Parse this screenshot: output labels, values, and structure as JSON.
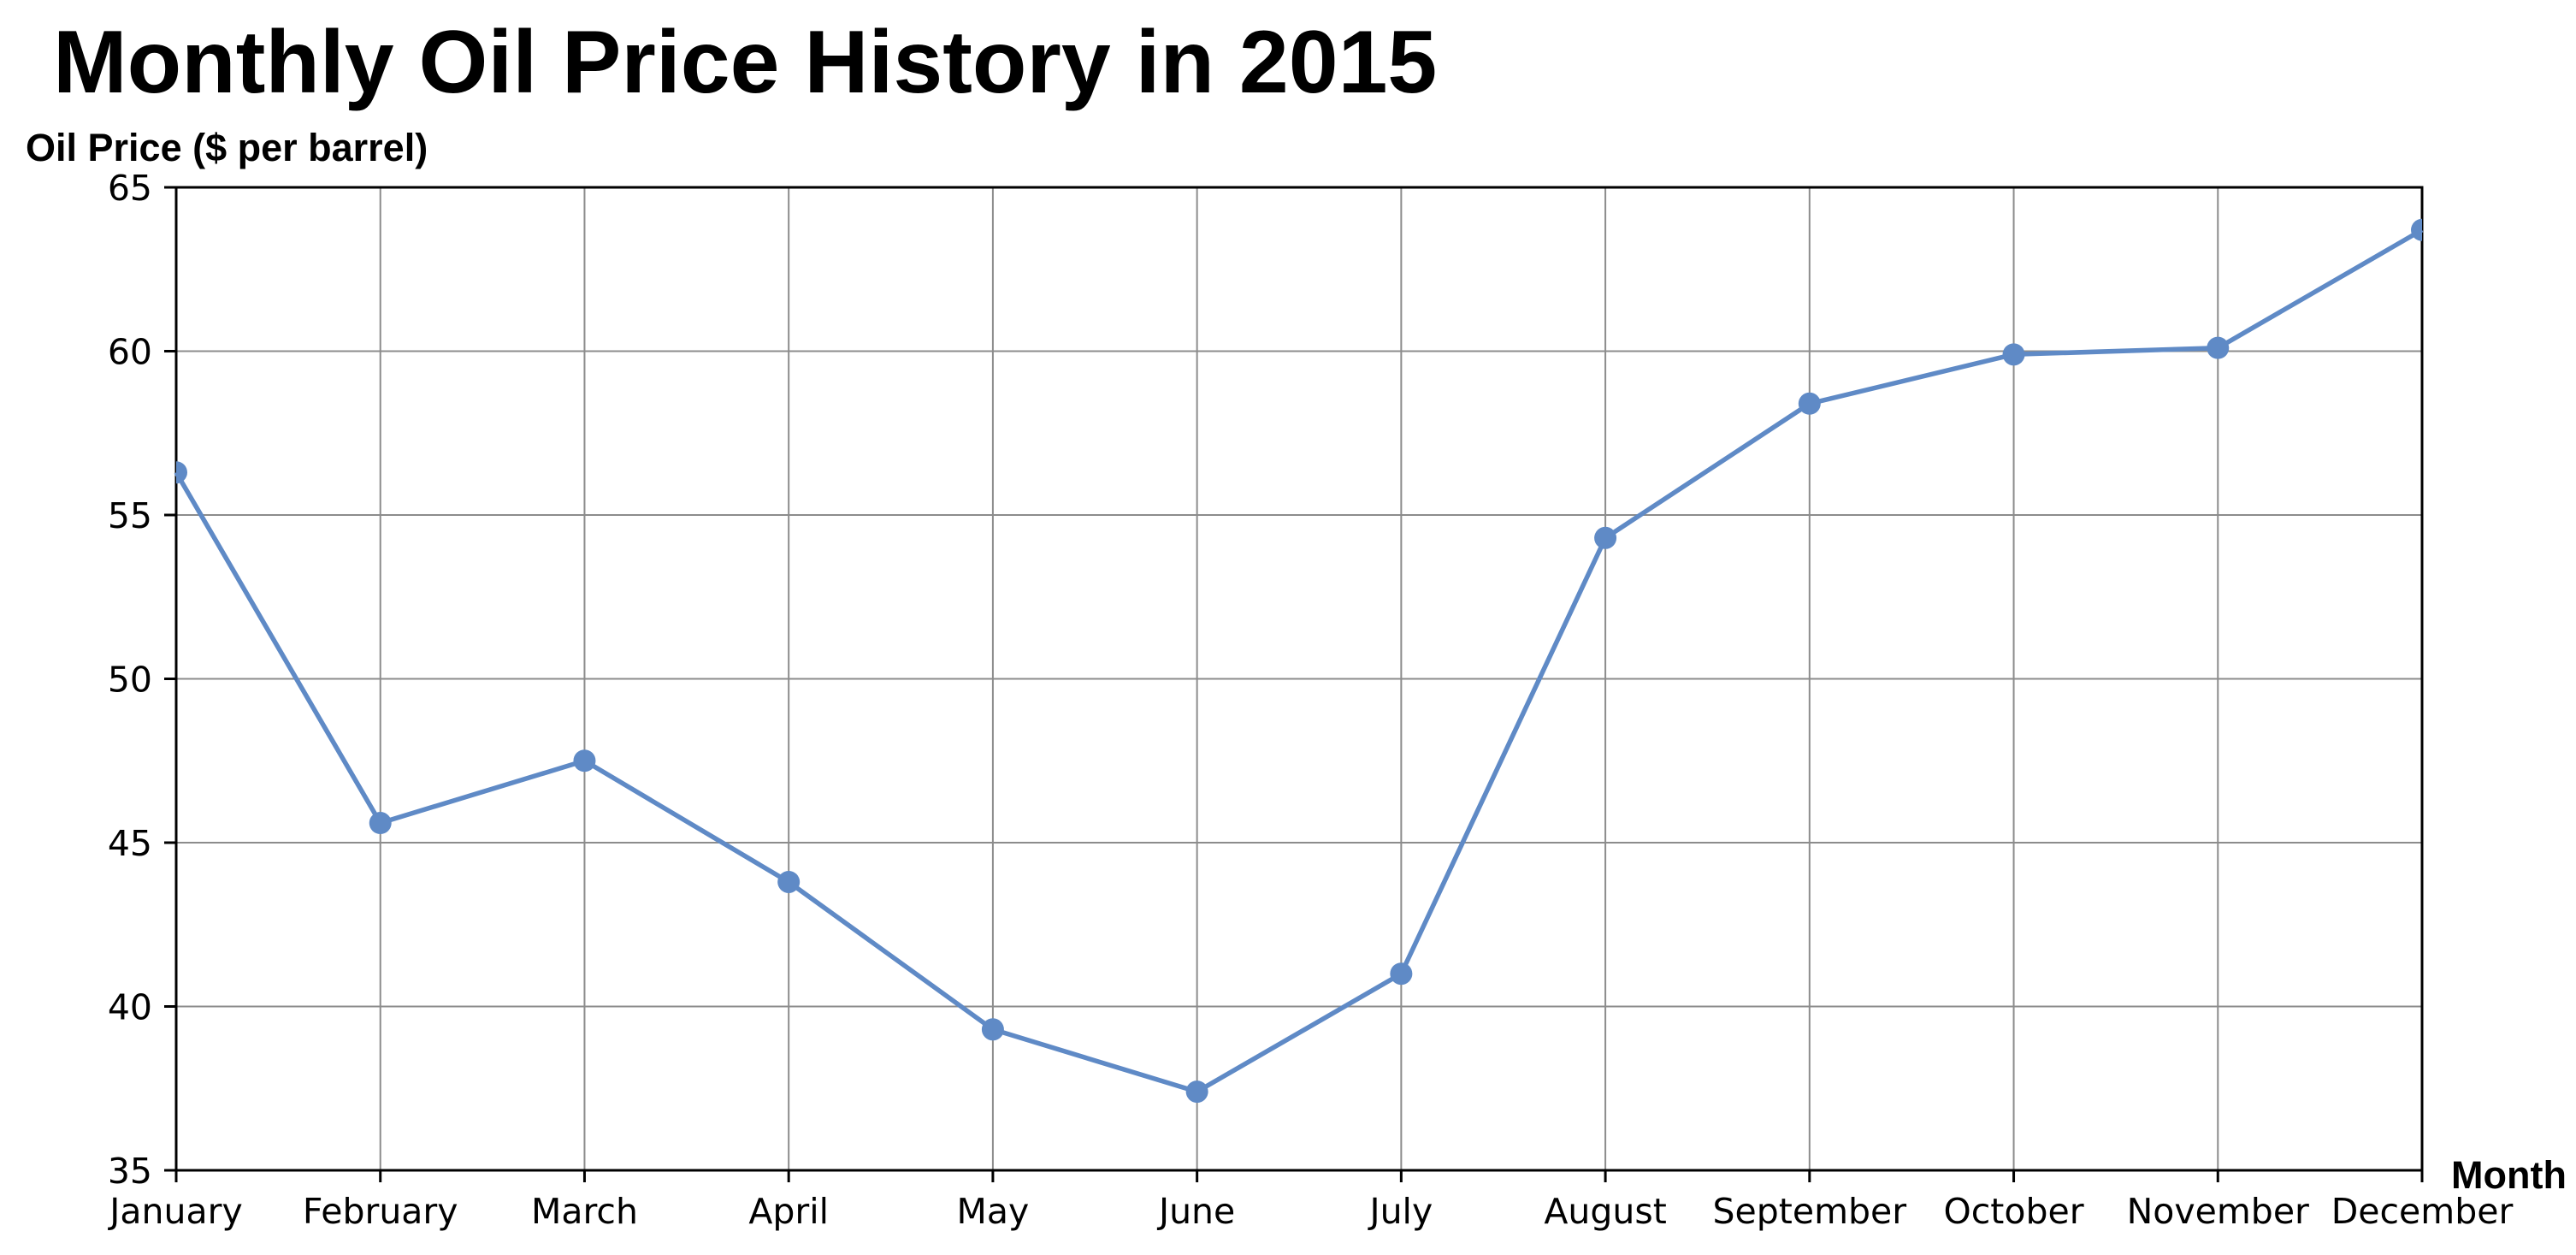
{
  "chart_data": {
    "type": "line",
    "title": "Monthly Oil Price History in 2015",
    "xlabel": "Month",
    "ylabel": "Oil Price ($ per barrel)",
    "categories": [
      "January",
      "February",
      "March",
      "April",
      "May",
      "June",
      "July",
      "August",
      "September",
      "October",
      "November",
      "December"
    ],
    "values": [
      56.3,
      45.6,
      47.5,
      43.8,
      39.3,
      37.4,
      41.0,
      54.3,
      58.4,
      59.9,
      60.1,
      63.7
    ],
    "ylim": [
      35,
      65
    ],
    "yticks": [
      "35",
      "40",
      "45",
      "50",
      "55",
      "60",
      "65"
    ],
    "grid": true,
    "legend": "none",
    "colors": {
      "line": "#5f8ac6",
      "marker": "#5f8ac6",
      "grid": "#8c8c8c",
      "axis": "#000000"
    }
  }
}
